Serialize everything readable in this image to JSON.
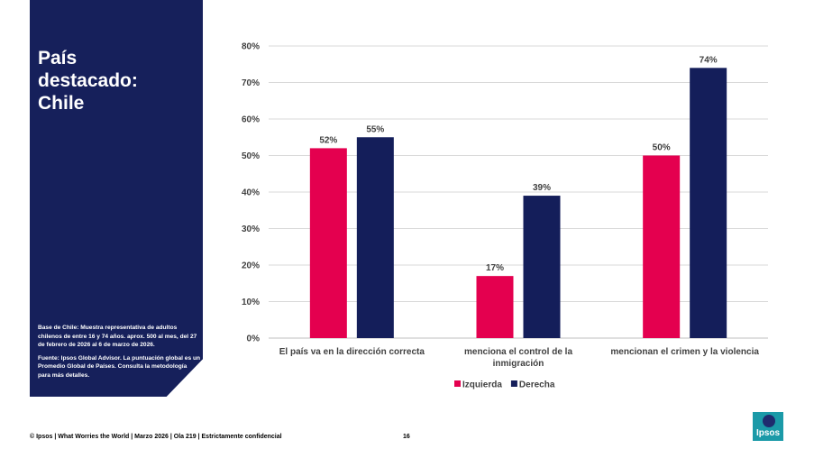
{
  "sidebar": {
    "title": "País\ndestacado:\nChile",
    "base_note": "Base de Chile: Muestra representativa de adultos chilenos de entre 16 y 74 años. aprox. 500 al mes, del 27 de febrero de 2026 al 6 de marzo de 2026.",
    "source_note": "Fuente: Ipsos Global Advisor. La puntuación global es un Promedio Global de Países. Consulta la metodología para más detalles."
  },
  "footer": {
    "text": "© Ipsos | What Worries the World | Marzo 2026 | Ola 219 | Estrictamente confidencial",
    "page_number": "16"
  },
  "logo": {
    "text": "Ipsos"
  },
  "chart_data": {
    "type": "bar",
    "categories": [
      [
        "El país va en la dirección correcta"
      ],
      [
        "menciona el control de la",
        "inmigración"
      ],
      [
        "mencionan el crimen y la violencia"
      ]
    ],
    "series": [
      {
        "name": "Izquierda",
        "color": "#e4004f",
        "values": [
          52,
          17,
          50
        ],
        "labels": [
          "52%",
          "17%",
          "50%"
        ]
      },
      {
        "name": "Derecha",
        "color": "#141e5a",
        "values": [
          55,
          39,
          74
        ],
        "labels": [
          "55%",
          "39%",
          "74%"
        ]
      }
    ],
    "ylim": [
      0,
      80
    ],
    "yticks": [
      0,
      10,
      20,
      30,
      40,
      50,
      60,
      70,
      80
    ],
    "ytick_labels": [
      "0%",
      "10%",
      "20%",
      "30%",
      "40%",
      "50%",
      "60%",
      "70%",
      "80%"
    ],
    "grid": true,
    "legend_position": "bottom"
  }
}
